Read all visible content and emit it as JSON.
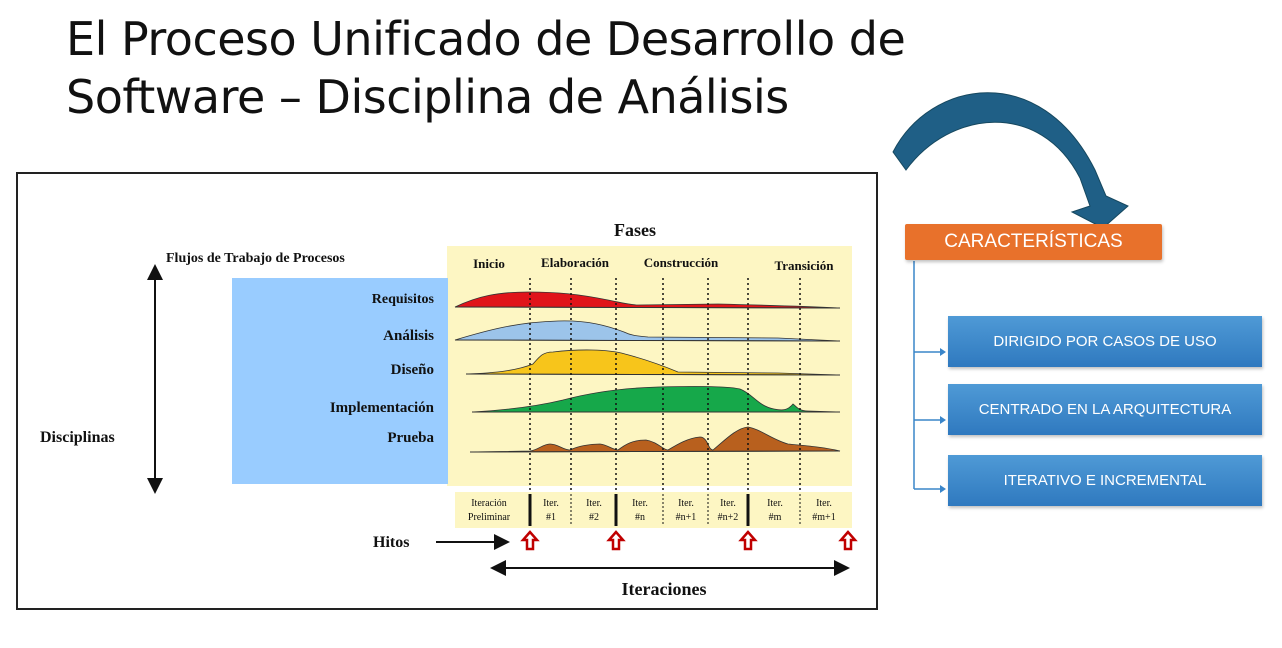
{
  "slide": {
    "title_line1": "El Proceso Unificado de Desarrollo de",
    "title_line2": "Software – Disciplina de Análisis"
  },
  "diagram": {
    "phases_title": "Fases",
    "workflows_label": "Flujos de Trabajo de Procesos",
    "disciplines_label": "Disciplinas",
    "phases": [
      "Inicio",
      "Elaboración",
      "Construcción",
      "Transición"
    ],
    "disciplines": [
      "Requisitos",
      "Análisis",
      "Diseño",
      "Implementación",
      "Prueba"
    ],
    "iterations": [
      {
        "line1": "Iteración",
        "line2": "Preliminar"
      },
      {
        "line1": "Iter.",
        "line2": "#1"
      },
      {
        "line1": "Iter.",
        "line2": "#2"
      },
      {
        "line1": "Iter.",
        "line2": "#n"
      },
      {
        "line1": "Iter.",
        "line2": "#n+1"
      },
      {
        "line1": "Iter.",
        "line2": "#n+2"
      },
      {
        "line1": "Iter.",
        "line2": "#m"
      },
      {
        "line1": "Iter.",
        "line2": "#m+1"
      }
    ],
    "milestones_label": "Hitos",
    "iterations_label": "Iteraciones",
    "colors": {
      "requisitos": "#e0141a",
      "analisis": "#9cc4ea",
      "diseno": "#f7c51b",
      "implementacion": "#16a84a",
      "prueba": "#b8601e",
      "panel_yellow": "#fdf6c3",
      "panel_blue": "#99ccff",
      "milestone": "#c00000"
    }
  },
  "characteristics": {
    "header": "CARACTERÍSTICAS",
    "items": [
      "DIRIGIDO POR CASOS DE USO",
      "CENTRADO EN  LA ARQUITECTURA",
      "ITERATIVO E INCREMENTAL"
    ],
    "colors": {
      "header": "#e8712b",
      "item": "#3a85c9",
      "curved_arrow": "#1f5f86"
    }
  }
}
